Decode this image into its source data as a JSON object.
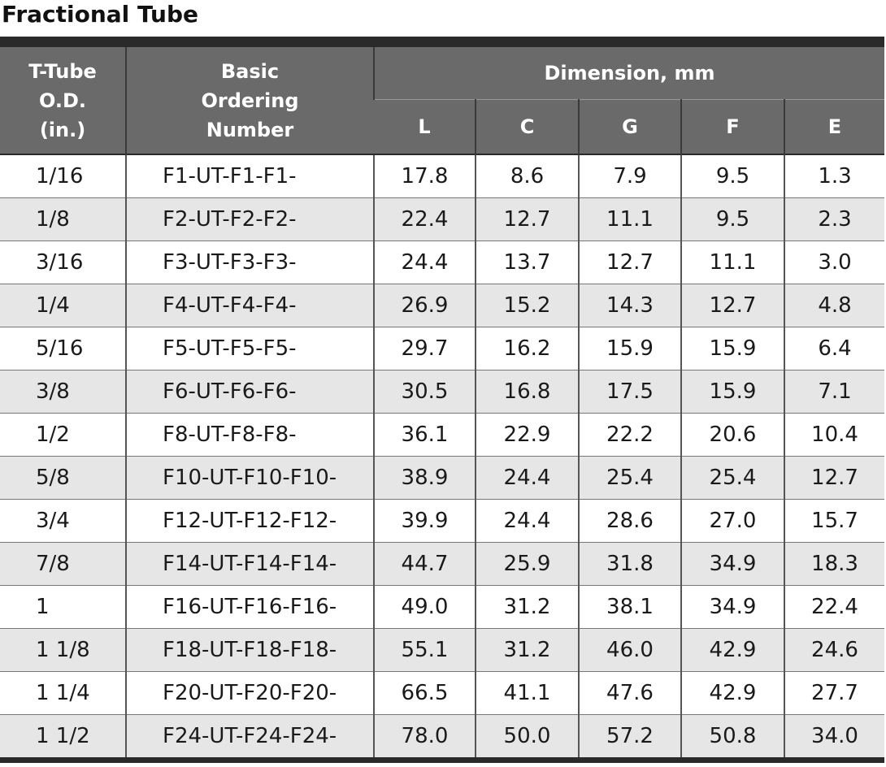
{
  "header": {
    "title": "Fractional Tube"
  },
  "table": {
    "columns": {
      "od": "T-Tube\nO.D.\n(in.)",
      "ordering": "Basic\nOrdering\nNumber",
      "dimension": "Dimension, mm",
      "sub": [
        "L",
        "C",
        "G",
        "F",
        "E"
      ]
    },
    "rows": [
      [
        "1/16",
        "F1-UT-F1-F1-",
        "17.8",
        "8.6",
        "7.9",
        "9.5",
        "1.3"
      ],
      [
        "1/8",
        "F2-UT-F2-F2-",
        "22.4",
        "12.7",
        "11.1",
        "9.5",
        "2.3"
      ],
      [
        "3/16",
        "F3-UT-F3-F3-",
        "24.4",
        "13.7",
        "12.7",
        "11.1",
        "3.0"
      ],
      [
        "1/4",
        "F4-UT-F4-F4-",
        "26.9",
        "15.2",
        "14.3",
        "12.7",
        "4.8"
      ],
      [
        "5/16",
        "F5-UT-F5-F5-",
        "29.7",
        "16.2",
        "15.9",
        "15.9",
        "6.4"
      ],
      [
        "3/8",
        "F6-UT-F6-F6-",
        "30.5",
        "16.8",
        "17.5",
        "15.9",
        "7.1"
      ],
      [
        "1/2",
        "F8-UT-F8-F8-",
        "36.1",
        "22.9",
        "22.2",
        "20.6",
        "10.4"
      ],
      [
        "5/8",
        "F10-UT-F10-F10-",
        "38.9",
        "24.4",
        "25.4",
        "25.4",
        "12.7"
      ],
      [
        "3/4",
        "F12-UT-F12-F12-",
        "39.9",
        "24.4",
        "28.6",
        "27.0",
        "15.7"
      ],
      [
        "7/8",
        "F14-UT-F14-F14-",
        "44.7",
        "25.9",
        "31.8",
        "34.9",
        "18.3"
      ],
      [
        "1",
        "F16-UT-F16-F16-",
        "49.0",
        "31.2",
        "38.1",
        "34.9",
        "22.4"
      ],
      [
        "1 1/8",
        "F18-UT-F18-F18-",
        "55.1",
        "31.2",
        "46.0",
        "42.9",
        "24.6"
      ],
      [
        "1 1/4",
        "F20-UT-F20-F20-",
        "66.5",
        "41.1",
        "47.6",
        "42.9",
        "27.7"
      ],
      [
        "1 1/2",
        "F24-UT-F24-F24-",
        "78.0",
        "50.0",
        "57.2",
        "50.8",
        "34.0"
      ]
    ]
  }
}
